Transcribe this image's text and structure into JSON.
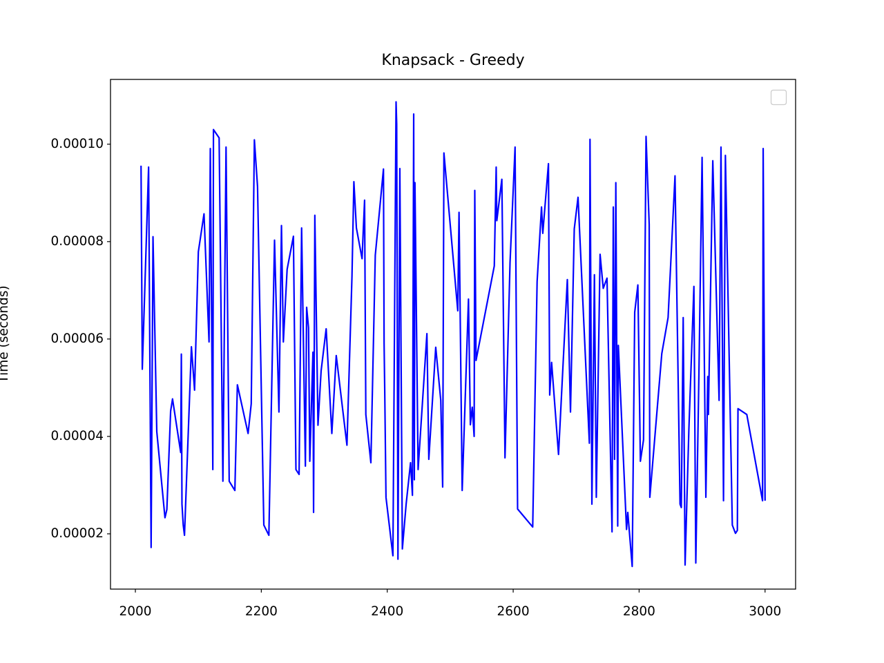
{
  "chart_data": {
    "type": "line",
    "title": "Knapsack - Greedy",
    "ylabel": "Time (seconds)",
    "xlim": [
      1960.5,
      3048.5
    ],
    "ylim": [
      8.65e-06,
      0.0001133
    ],
    "xticks": [
      2000,
      2200,
      2400,
      2600,
      2800,
      3000
    ],
    "yticks": [
      {
        "value": 2e-05,
        "label": "0.00002"
      },
      {
        "value": 4e-05,
        "label": "0.00004"
      },
      {
        "value": 6e-05,
        "label": "0.00006"
      },
      {
        "value": 8e-05,
        "label": "0.00008"
      },
      {
        "value": 0.0001,
        "label": "0.00010"
      }
    ],
    "x": [
      2009,
      2011,
      2021,
      2025,
      2028,
      2034,
      2047,
      2050,
      2056,
      2059,
      2072,
      2073,
      2074,
      2076,
      2078,
      2089,
      2094,
      2100,
      2109,
      2117,
      2119,
      2123,
      2124,
      2133,
      2139,
      2144,
      2149,
      2158,
      2162,
      2179,
      2184,
      2189,
      2194,
      2204,
      2212,
      2221,
      2228,
      2232,
      2235,
      2241,
      2251,
      2255,
      2260,
      2264,
      2270,
      2272,
      2275,
      2277,
      2282,
      2283,
      2285,
      2290,
      2295,
      2303,
      2312,
      2319,
      2336,
      2344,
      2347,
      2351,
      2360,
      2364,
      2366,
      2374,
      2381,
      2394,
      2395,
      2396,
      2398,
      2409,
      2414,
      2415,
      2417,
      2420,
      2424,
      2430,
      2437,
      2440,
      2442,
      2443,
      2444,
      2449,
      2463,
      2466,
      2477,
      2485,
      2488,
      2490,
      2512,
      2514,
      2519,
      2529,
      2532,
      2535,
      2538,
      2539,
      2541,
      2570,
      2573,
      2574,
      2582,
      2587,
      2595,
      2603,
      2607,
      2631,
      2638,
      2645,
      2647,
      2656,
      2658,
      2661,
      2672,
      2686,
      2691,
      2697,
      2703,
      2721,
      2722,
      2725,
      2729,
      2732,
      2738,
      2743,
      2749,
      2757,
      2759,
      2761,
      2763,
      2766,
      2767,
      2780,
      2782,
      2789,
      2793,
      2798,
      2802,
      2807,
      2811,
      2816,
      2817,
      2836,
      2846,
      2857,
      2865,
      2867,
      2870,
      2873,
      2879,
      2887,
      2890,
      2895,
      2900,
      2906,
      2909,
      2910,
      2917,
      2927,
      2930,
      2934,
      2937,
      2948,
      2953,
      2956,
      2957,
      2971,
      2996,
      2997,
      3000
    ],
    "series": [
      {
        "color": "#0000ff",
        "values": [
          9.56e-05,
          5.38e-05,
          9.53e-05,
          1.72e-05,
          8.1e-05,
          4.1e-05,
          2.33e-05,
          2.5e-05,
          4.52e-05,
          4.77e-05,
          3.67e-05,
          5.69e-05,
          2.61e-05,
          2.18e-05,
          1.97e-05,
          5.84e-05,
          4.95e-05,
          7.79e-05,
          8.57e-05,
          5.94e-05,
          9.91e-05,
          3.32e-05,
          0.000103,
          0.0001013,
          3.08e-05,
          9.94e-05,
          3.08e-05,
          2.89e-05,
          5.06e-05,
          4.06e-05,
          4.67e-05,
          0.0001009,
          9.13e-05,
          2.18e-05,
          1.97e-05,
          8.03e-05,
          4.5e-05,
          8.33e-05,
          5.94e-05,
          7.43e-05,
          8.11e-05,
          3.32e-05,
          3.22e-05,
          8.28e-05,
          3.39e-05,
          6.65e-05,
          6.23e-05,
          3.49e-05,
          5.73e-05,
          2.44e-05,
          8.54e-05,
          4.23e-05,
          5.35e-05,
          6.21e-05,
          4.06e-05,
          5.66e-05,
          3.82e-05,
          7.29e-05,
          9.23e-05,
          8.28e-05,
          7.65e-05,
          8.85e-05,
          4.45e-05,
          3.46e-05,
          7.72e-05,
          9.49e-05,
          5.91e-05,
          4.95e-05,
          2.75e-05,
          1.55e-05,
          0.0001087,
          0.0001041,
          1.48e-05,
          9.5e-05,
          1.69e-05,
          2.61e-05,
          3.46e-05,
          2.79e-05,
          0.0001062,
          3.11e-05,
          9.21e-05,
          3.32e-05,
          6.11e-05,
          3.53e-05,
          5.83e-05,
          4.74e-05,
          2.96e-05,
          9.82e-05,
          6.58e-05,
          8.6e-05,
          2.89e-05,
          6.82e-05,
          4.24e-05,
          4.6e-05,
          4e-05,
          9.05e-05,
          5.56e-05,
          7.5e-05,
          9.53e-05,
          8.43e-05,
          9.28e-05,
          3.56e-05,
          7.57e-05,
          9.94e-05,
          2.51e-05,
          2.14e-05,
          7.18e-05,
          8.71e-05,
          8.17e-05,
          9.6e-05,
          4.85e-05,
          5.52e-05,
          3.63e-05,
          7.22e-05,
          4.5e-05,
          8.26e-05,
          8.91e-05,
          3.86e-05,
          0.000101,
          2.61e-05,
          7.32e-05,
          2.75e-05,
          7.74e-05,
          7.04e-05,
          7.25e-05,
          2.04e-05,
          8.71e-05,
          3.53e-05,
          9.21e-05,
          2.16e-05,
          5.87e-05,
          2.09e-05,
          2.44e-05,
          1.33e-05,
          6.55e-05,
          7.11e-05,
          3.49e-05,
          3.93e-05,
          0.0001016,
          8.35e-05,
          2.75e-05,
          5.7e-05,
          6.44e-05,
          9.35e-05,
          2.61e-05,
          2.54e-05,
          6.44e-05,
          1.36e-05,
          4.14e-05,
          7.08e-05,
          1.4e-05,
          5.31e-05,
          9.73e-05,
          2.75e-05,
          5.23e-05,
          4.45e-05,
          9.66e-05,
          4.74e-05,
          9.94e-05,
          2.68e-05,
          9.77e-05,
          2.18e-05,
          2.01e-05,
          2.07e-05,
          4.57e-05,
          4.45e-05,
          2.68e-05,
          9.91e-05,
          2.68e-05
        ]
      }
    ]
  }
}
